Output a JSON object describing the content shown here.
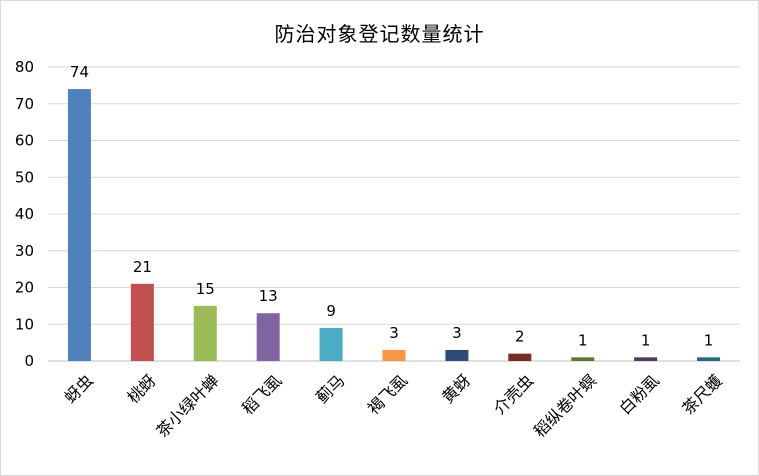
{
  "chart_data": {
    "type": "bar",
    "title": "防治对象登记数量统计",
    "categories": [
      "蚜虫",
      "桃蚜",
      "茶小绿叶蝉",
      "稻飞虱",
      "蓟马",
      "褐飞虱",
      "黄蚜",
      "介壳虫",
      "稻纵卷叶螟",
      "白粉虱",
      "茶尺蠖"
    ],
    "values": [
      74,
      21,
      15,
      13,
      9,
      3,
      3,
      2,
      1,
      1,
      1
    ],
    "colors": [
      "#4f81bd",
      "#c0504d",
      "#9bbb59",
      "#8064a2",
      "#4bacc6",
      "#f79646",
      "#2c4d75",
      "#772c2a",
      "#5f7530",
      "#4d3b62",
      "#276a7c"
    ],
    "ylim": [
      0,
      80
    ],
    "yticks": [
      0,
      10,
      20,
      30,
      40,
      50,
      60,
      70,
      80
    ],
    "grid": true,
    "gridline_color": "#d9d9d9"
  }
}
